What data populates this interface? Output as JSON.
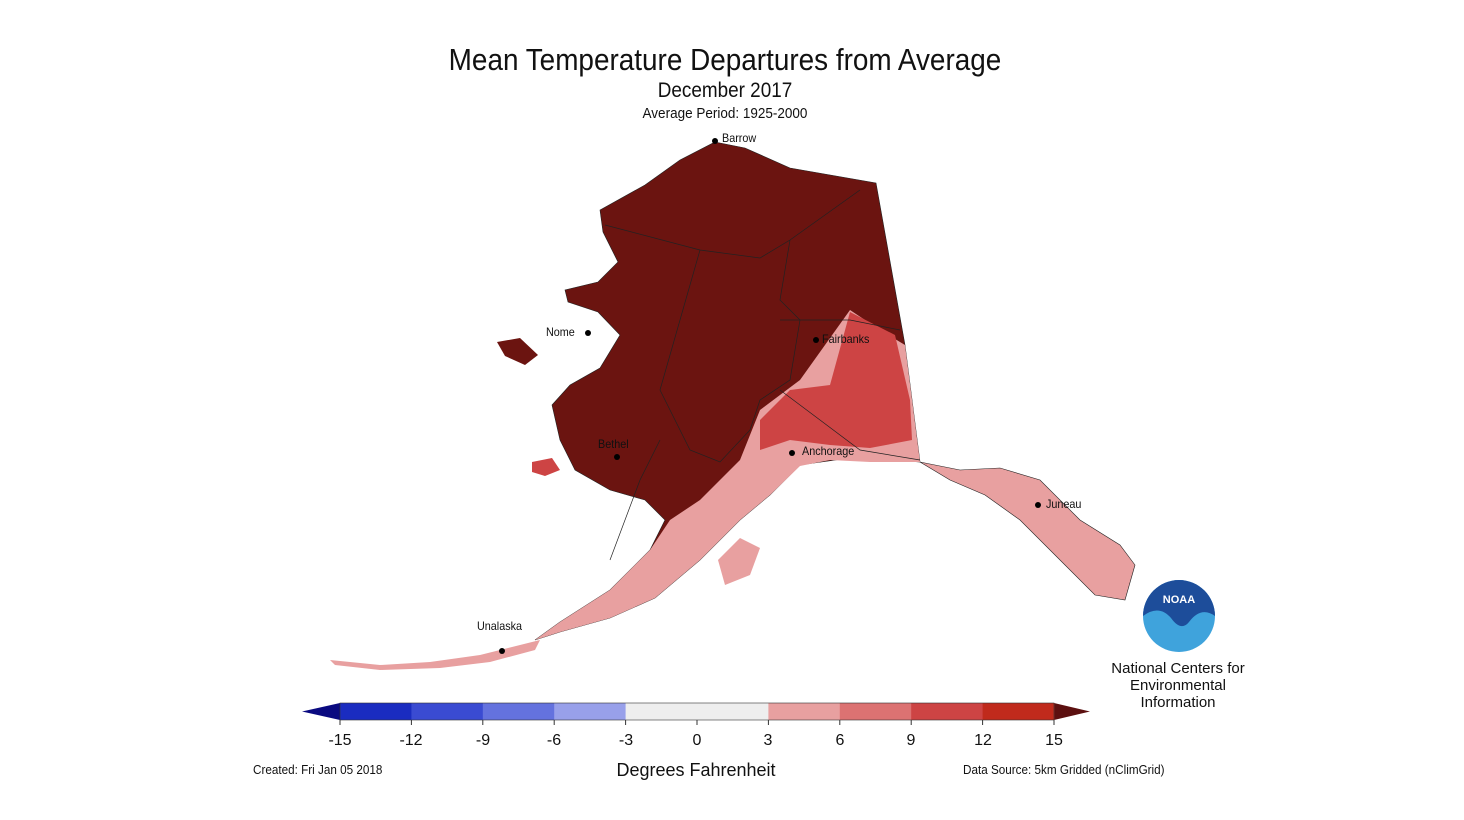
{
  "title": "Mean Temperature Departures from Average",
  "subtitle": "December 2017",
  "period": "Average Period: 1925-2000",
  "cities": [
    "Barrow",
    "Nome",
    "Fairbanks",
    "Bethel",
    "Anchorage",
    "Juneau",
    "Unalaska"
  ],
  "colorbar": {
    "ticks": [
      "-15",
      "-12",
      "-9",
      "-6",
      "-3",
      "0",
      "3",
      "6",
      "9",
      "12",
      "15"
    ],
    "label": "Degrees Fahrenheit",
    "colors": [
      "#1a2cc0",
      "#3a4bd2",
      "#6472de",
      "#98a0ea",
      "#eeeeee",
      "#eeeeee",
      "#e8a0a0",
      "#dc7272",
      "#cd4444",
      "#c02a1c"
    ],
    "under_color": "#0a0a80",
    "over_color": "#5c1010"
  },
  "map_colors": {
    "dominant": "#6b1410",
    "over_12": "#c02a1c",
    "9_12": "#cd4444",
    "3_6": "#e8a0a0"
  },
  "created": "Created: Fri Jan 05 2018",
  "source": "Data Source: 5km Gridded (nClimGrid)",
  "logo": {
    "text": "NOAA",
    "org": "National Centers for Environmental Information",
    "org_lines": [
      "National Centers for",
      "Environmental",
      "Information"
    ]
  }
}
